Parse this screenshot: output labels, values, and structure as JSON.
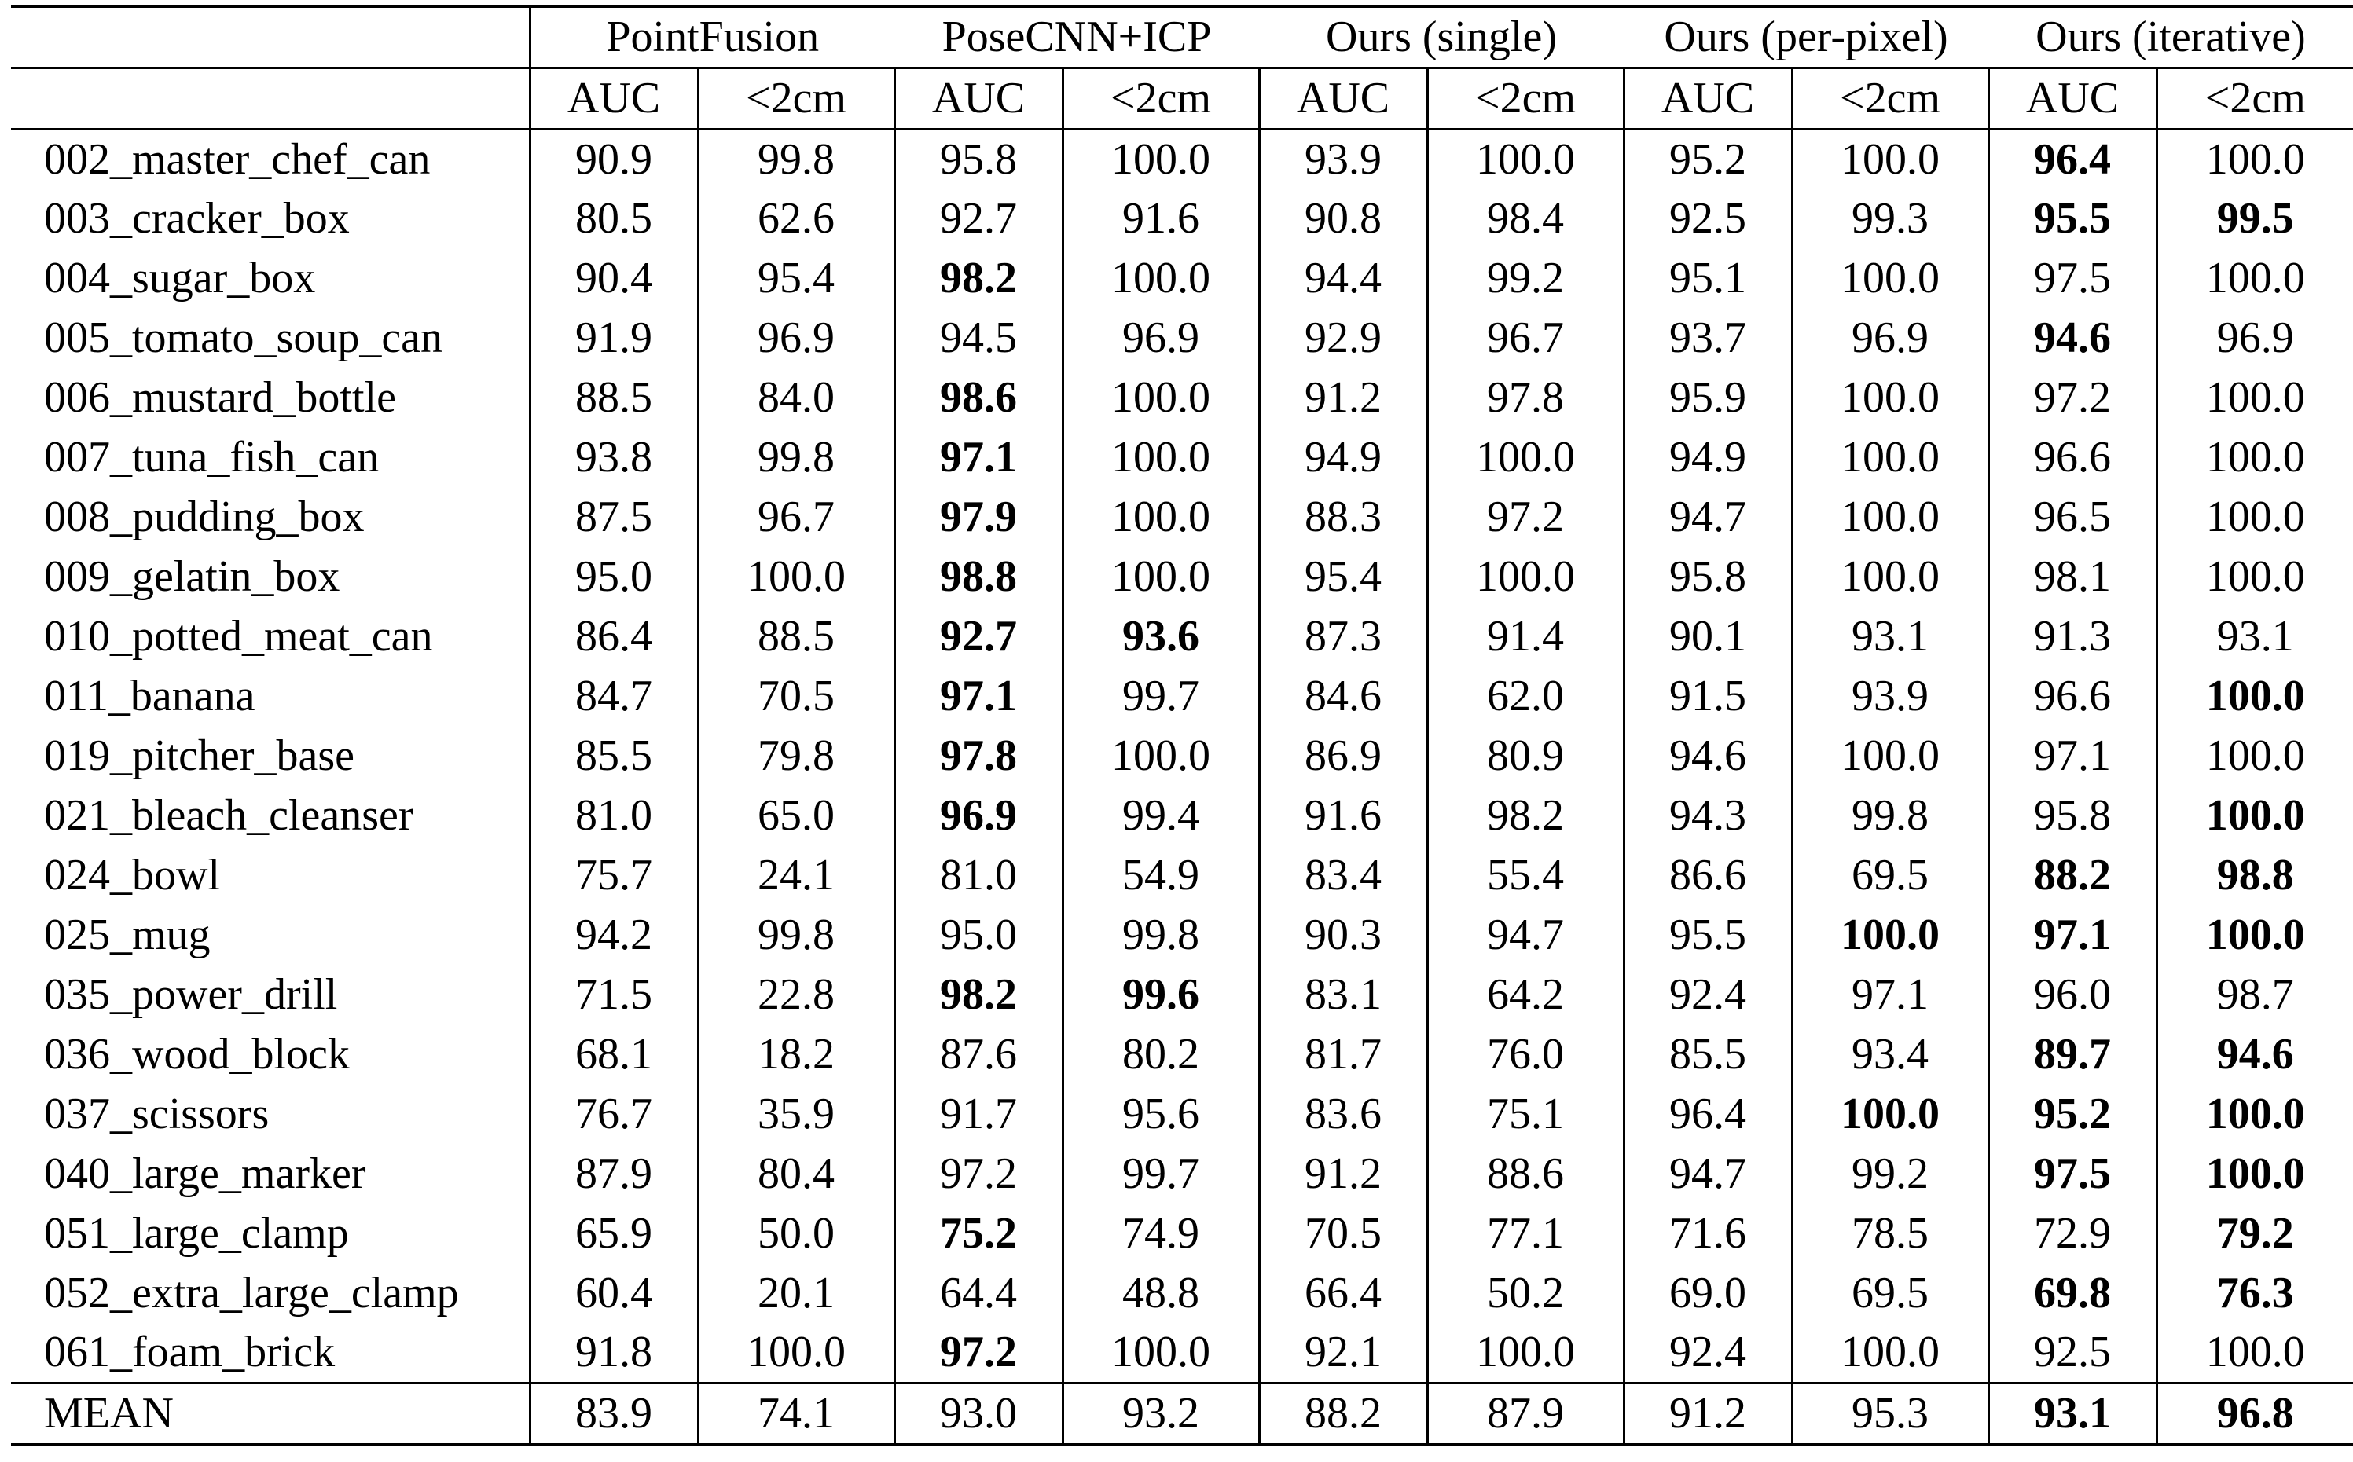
{
  "page": {
    "background": "#ffffff",
    "text_color": "#000000"
  },
  "table": {
    "corner_label": "",
    "methods": [
      "PointFusion",
      "PoseCNN+ICP",
      "Ours (single)",
      "Ours (per-pixel)",
      "Ours (iterative)"
    ],
    "metric_subheaders": [
      "AUC",
      "<2cm"
    ],
    "rows": [
      {
        "name": "002_master_chef_can",
        "values": [
          "90.9",
          "99.8",
          "95.8",
          "100.0",
          "93.9",
          "100.0",
          "95.2",
          "100.0",
          "96.4",
          "100.0"
        ],
        "bold": [
          8
        ],
        "is_mean": false
      },
      {
        "name": "003_cracker_box",
        "values": [
          "80.5",
          "62.6",
          "92.7",
          "91.6",
          "90.8",
          "98.4",
          "92.5",
          "99.3",
          "95.5",
          "99.5"
        ],
        "bold": [
          8,
          9
        ],
        "is_mean": false
      },
      {
        "name": "004_sugar_box",
        "values": [
          "90.4",
          "95.4",
          "98.2",
          "100.0",
          "94.4",
          "99.2",
          "95.1",
          "100.0",
          "97.5",
          "100.0"
        ],
        "bold": [
          2
        ],
        "is_mean": false
      },
      {
        "name": "005_tomato_soup_can",
        "values": [
          "91.9",
          "96.9",
          "94.5",
          "96.9",
          "92.9",
          "96.7",
          "93.7",
          "96.9",
          "94.6",
          "96.9"
        ],
        "bold": [
          8
        ],
        "is_mean": false
      },
      {
        "name": "006_mustard_bottle",
        "values": [
          "88.5",
          "84.0",
          "98.6",
          "100.0",
          "91.2",
          "97.8",
          "95.9",
          "100.0",
          "97.2",
          "100.0"
        ],
        "bold": [
          2
        ],
        "is_mean": false
      },
      {
        "name": "007_tuna_fish_can",
        "values": [
          "93.8",
          "99.8",
          "97.1",
          "100.0",
          "94.9",
          "100.0",
          "94.9",
          "100.0",
          "96.6",
          "100.0"
        ],
        "bold": [
          2
        ],
        "is_mean": false
      },
      {
        "name": "008_pudding_box",
        "values": [
          "87.5",
          "96.7",
          "97.9",
          "100.0",
          "88.3",
          "97.2",
          "94.7",
          "100.0",
          "96.5",
          "100.0"
        ],
        "bold": [
          2
        ],
        "is_mean": false
      },
      {
        "name": "009_gelatin_box",
        "values": [
          "95.0",
          "100.0",
          "98.8",
          "100.0",
          "95.4",
          "100.0",
          "95.8",
          "100.0",
          "98.1",
          "100.0"
        ],
        "bold": [
          2
        ],
        "is_mean": false
      },
      {
        "name": "010_potted_meat_can",
        "values": [
          "86.4",
          "88.5",
          "92.7",
          "93.6",
          "87.3",
          "91.4",
          "90.1",
          "93.1",
          "91.3",
          "93.1"
        ],
        "bold": [
          2,
          3
        ],
        "is_mean": false
      },
      {
        "name": "011_banana",
        "values": [
          "84.7",
          "70.5",
          "97.1",
          "99.7",
          "84.6",
          "62.0",
          "91.5",
          "93.9",
          "96.6",
          "100.0"
        ],
        "bold": [
          2,
          9
        ],
        "is_mean": false
      },
      {
        "name": "019_pitcher_base",
        "values": [
          "85.5",
          "79.8",
          "97.8",
          "100.0",
          "86.9",
          "80.9",
          "94.6",
          "100.0",
          "97.1",
          "100.0"
        ],
        "bold": [
          2
        ],
        "is_mean": false
      },
      {
        "name": "021_bleach_cleanser",
        "values": [
          "81.0",
          "65.0",
          "96.9",
          "99.4",
          "91.6",
          "98.2",
          "94.3",
          "99.8",
          "95.8",
          "100.0"
        ],
        "bold": [
          2,
          9
        ],
        "is_mean": false
      },
      {
        "name": "024_bowl",
        "values": [
          "75.7",
          "24.1",
          "81.0",
          "54.9",
          "83.4",
          "55.4",
          "86.6",
          "69.5",
          "88.2",
          "98.8"
        ],
        "bold": [
          8,
          9
        ],
        "is_mean": false
      },
      {
        "name": "025_mug",
        "values": [
          "94.2",
          "99.8",
          "95.0",
          "99.8",
          "90.3",
          "94.7",
          "95.5",
          "100.0",
          "97.1",
          "100.0"
        ],
        "bold": [
          7,
          8,
          9
        ],
        "is_mean": false
      },
      {
        "name": "035_power_drill",
        "values": [
          "71.5",
          "22.8",
          "98.2",
          "99.6",
          "83.1",
          "64.2",
          "92.4",
          "97.1",
          "96.0",
          "98.7"
        ],
        "bold": [
          2,
          3
        ],
        "is_mean": false
      },
      {
        "name": "036_wood_block",
        "values": [
          "68.1",
          "18.2",
          "87.6",
          "80.2",
          "81.7",
          "76.0",
          "85.5",
          "93.4",
          "89.7",
          "94.6"
        ],
        "bold": [
          8,
          9
        ],
        "is_mean": false
      },
      {
        "name": "037_scissors",
        "values": [
          "76.7",
          "35.9",
          "91.7",
          "95.6",
          "83.6",
          "75.1",
          "96.4",
          "100.0",
          "95.2",
          "100.0"
        ],
        "bold": [
          7,
          8,
          9
        ],
        "is_mean": false
      },
      {
        "name": "040_large_marker",
        "values": [
          "87.9",
          "80.4",
          "97.2",
          "99.7",
          "91.2",
          "88.6",
          "94.7",
          "99.2",
          "97.5",
          "100.0"
        ],
        "bold": [
          8,
          9
        ],
        "is_mean": false
      },
      {
        "name": "051_large_clamp",
        "values": [
          "65.9",
          "50.0",
          "75.2",
          "74.9",
          "70.5",
          "77.1",
          "71.6",
          "78.5",
          "72.9",
          "79.2"
        ],
        "bold": [
          2,
          9
        ],
        "is_mean": false
      },
      {
        "name": "052_extra_large_clamp",
        "values": [
          "60.4",
          "20.1",
          "64.4",
          "48.8",
          "66.4",
          "50.2",
          "69.0",
          "69.5",
          "69.8",
          "76.3"
        ],
        "bold": [
          8,
          9
        ],
        "is_mean": false
      },
      {
        "name": "061_foam_brick",
        "values": [
          "91.8",
          "100.0",
          "97.2",
          "100.0",
          "92.1",
          "100.0",
          "92.4",
          "100.0",
          "92.5",
          "100.0"
        ],
        "bold": [
          2
        ],
        "is_mean": false
      },
      {
        "name": "MEAN",
        "values": [
          "83.9",
          "74.1",
          "93.0",
          "93.2",
          "88.2",
          "87.9",
          "91.2",
          "95.3",
          "93.1",
          "96.8"
        ],
        "bold": [
          8,
          9
        ],
        "is_mean": true
      }
    ]
  }
}
